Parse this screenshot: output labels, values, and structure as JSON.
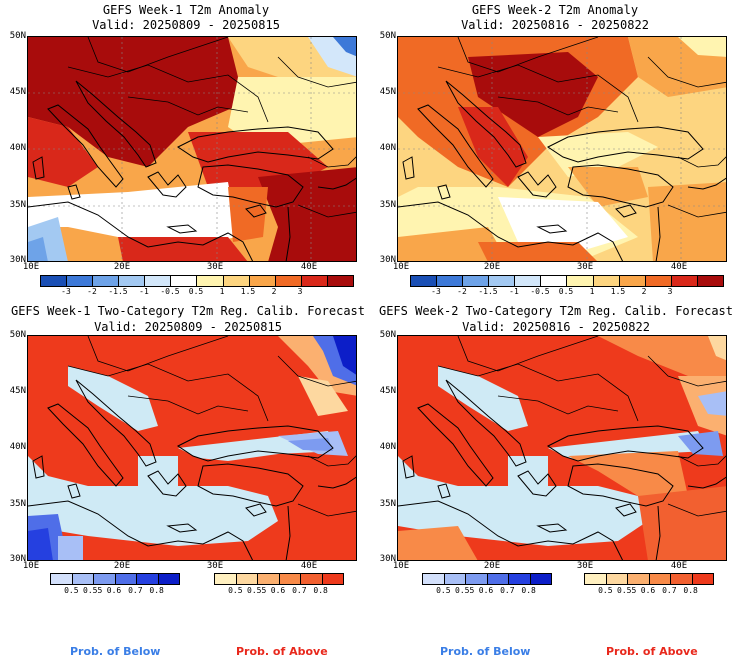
{
  "panels": [
    {
      "id": "p1",
      "title": "GEFS Week-1 T2m Anomaly",
      "valid": "Valid: 20250809 - 20250815"
    },
    {
      "id": "p2",
      "title": "GEFS Week-2 T2m Anomaly",
      "valid": "Valid: 20250816 - 20250822"
    },
    {
      "id": "p3",
      "title": "GEFS Week-1 Two-Category T2m Reg. Calib. Forecast",
      "valid": "Valid: 20250809 - 20250815"
    },
    {
      "id": "p4",
      "title": "GEFS Week-2 Two-Category T2m Reg. Calib. Forecast",
      "valid": "Valid: 20250816 - 20250822"
    }
  ],
  "axes": {
    "lat_labels": [
      "50N",
      "45N",
      "40N",
      "35N",
      "30N"
    ],
    "lon_labels": [
      "10E",
      "20E",
      "30E",
      "40E"
    ]
  },
  "anomaly_colorbar": {
    "ticks": [
      "-3",
      "-2",
      "-1.5",
      "-1",
      "-0.5",
      "0.5",
      "1",
      "1.5",
      "2",
      "3"
    ],
    "colors": [
      "#1a4fb5",
      "#3d79d8",
      "#6ea3e8",
      "#a3c9f2",
      "#d3e7fa",
      "#ffffff",
      "#fff4b0",
      "#fdd580",
      "#f9a64a",
      "#f06a25",
      "#d9281a",
      "#a80c0c"
    ]
  },
  "prob_below_colorbar": {
    "ticks": [
      "0.5",
      "0.55",
      "0.6",
      "0.7",
      "0.8"
    ],
    "colors": [
      "#d3e0fb",
      "#a8bff6",
      "#7d9bf0",
      "#4f6ee8",
      "#2540e0",
      "#0c1ec8"
    ]
  },
  "prob_above_colorbar": {
    "ticks": [
      "0.5",
      "0.55",
      "0.6",
      "0.7",
      "0.8"
    ],
    "colors": [
      "#fff0c0",
      "#fdd8a0",
      "#fbb070",
      "#f88a48",
      "#f26030",
      "#ee3a1c"
    ]
  },
  "legend": {
    "below": "Prob. of Below",
    "above": "Prob. of Above",
    "below_color": "#3a7ee6",
    "above_color": "#e8281c"
  }
}
